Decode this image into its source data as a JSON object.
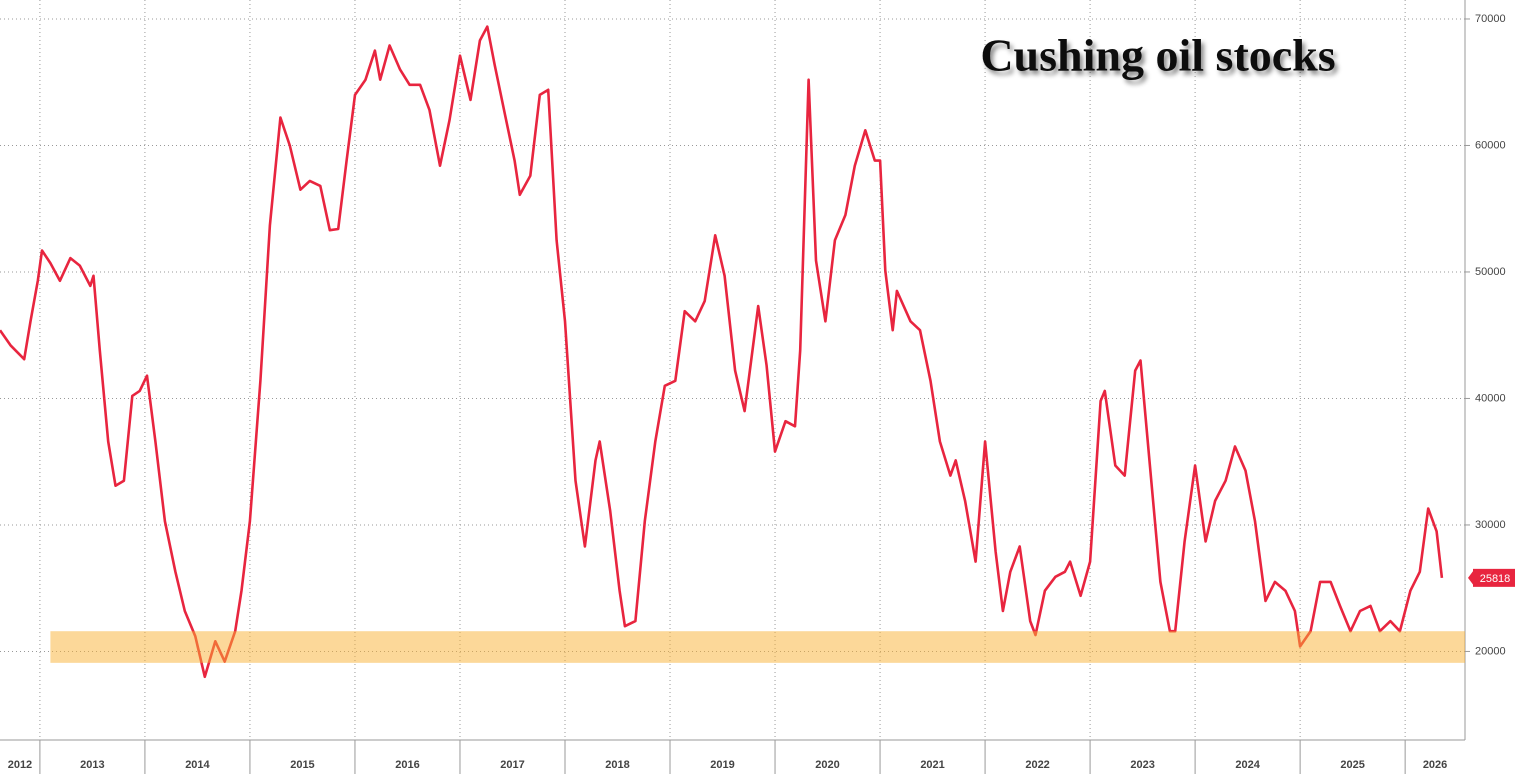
{
  "chart_data": {
    "type": "line",
    "title": "Cushing oil stocks",
    "x": [
      2012.62,
      2012.72,
      2012.85,
      2012.91,
      2012.98,
      2013.02,
      2013.1,
      2013.19,
      2013.29,
      2013.38,
      2013.48,
      2013.51,
      2013.57,
      2013.65,
      2013.72,
      2013.8,
      2013.88,
      2013.95,
      2014.02,
      2014.1,
      2014.19,
      2014.29,
      2014.38,
      2014.48,
      2014.57,
      2014.67,
      2014.76,
      2014.86,
      2014.92,
      2015.0,
      2015.1,
      2015.19,
      2015.29,
      2015.38,
      2015.48,
      2015.57,
      2015.67,
      2015.76,
      2015.84,
      2015.92,
      2016.0,
      2016.1,
      2016.19,
      2016.24,
      2016.33,
      2016.43,
      2016.52,
      2016.62,
      2016.71,
      2016.81,
      2016.9,
      2017.0,
      2017.1,
      2017.19,
      2017.26,
      2017.33,
      2017.43,
      2017.52,
      2017.57,
      2017.67,
      2017.76,
      2017.84,
      2017.92,
      2018.0,
      2018.1,
      2018.19,
      2018.29,
      2018.33,
      2018.43,
      2018.52,
      2018.57,
      2018.67,
      2018.76,
      2018.86,
      2018.95,
      2019.05,
      2019.14,
      2019.24,
      2019.33,
      2019.43,
      2019.52,
      2019.62,
      2019.71,
      2019.81,
      2019.84,
      2019.92,
      2020.0,
      2020.1,
      2020.19,
      2020.24,
      2020.32,
      2020.39,
      2020.48,
      2020.57,
      2020.67,
      2020.76,
      2020.86,
      2020.95,
      2021.0,
      2021.05,
      2021.12,
      2021.16,
      2021.29,
      2021.38,
      2021.48,
      2021.57,
      2021.67,
      2021.72,
      2021.81,
      2021.91,
      2022.0,
      2022.1,
      2022.17,
      2022.24,
      2022.33,
      2022.43,
      2022.48,
      2022.57,
      2022.67,
      2022.76,
      2022.81,
      2022.91,
      2023.0,
      2023.1,
      2023.14,
      2023.24,
      2023.33,
      2023.43,
      2023.48,
      2023.57,
      2023.67,
      2023.76,
      2023.81,
      2023.9,
      2024.0,
      2024.1,
      2024.19,
      2024.29,
      2024.38,
      2024.48,
      2024.57,
      2024.67,
      2024.76,
      2024.86,
      2024.95,
      2025.0,
      2025.1,
      2025.19,
      2025.29,
      2025.38,
      2025.48,
      2025.57,
      2025.67,
      2025.76,
      2025.86,
      2025.95,
      2026.05,
      2026.14,
      2026.22,
      2026.3,
      2026.35
    ],
    "values": [
      45400,
      44200,
      43100,
      46100,
      49300,
      51700,
      50700,
      49300,
      51100,
      50500,
      48900,
      49700,
      43800,
      36600,
      33100,
      33500,
      40200,
      40600,
      41800,
      36600,
      30300,
      26300,
      23200,
      21200,
      18000,
      20800,
      19200,
      21600,
      24800,
      30300,
      41400,
      53700,
      62200,
      60000,
      56500,
      57200,
      56800,
      53300,
      53400,
      58800,
      64000,
      65200,
      67500,
      65200,
      67900,
      66000,
      64800,
      64800,
      62800,
      58400,
      62000,
      67100,
      63600,
      68300,
      69400,
      66400,
      62400,
      58800,
      56100,
      57600,
      64000,
      64400,
      52500,
      46100,
      33500,
      28300,
      35100,
      36600,
      31100,
      24800,
      22000,
      22400,
      30300,
      36600,
      41000,
      41400,
      46900,
      46100,
      47700,
      52900,
      49700,
      42200,
      39000,
      45400,
      47300,
      42600,
      35800,
      38200,
      37800,
      43800,
      65200,
      50900,
      46100,
      52500,
      54500,
      58400,
      61200,
      58800,
      58800,
      50100,
      45400,
      48500,
      46100,
      45400,
      41400,
      36600,
      33900,
      35100,
      31900,
      27100,
      36600,
      27900,
      23200,
      26300,
      28300,
      22400,
      21300,
      24800,
      25900,
      26300,
      27100,
      24400,
      27100,
      39800,
      40600,
      34700,
      33900,
      42200,
      43000,
      34700,
      25500,
      21600,
      21600,
      28700,
      34700,
      28700,
      31900,
      33500,
      36200,
      34300,
      30300,
      24000,
      25500,
      24800,
      23200,
      20400,
      21600,
      25500,
      25500,
      23600,
      21600,
      23200,
      23600,
      21600,
      22400,
      21600,
      24800,
      26300,
      31300,
      29500,
      25818
    ],
    "color": "#e8253f",
    "xlim": [
      2012.62,
      2026.57
    ],
    "xticks": [
      2012,
      2013,
      2014,
      2015,
      2016,
      2017,
      2018,
      2019,
      2020,
      2021,
      2022,
      2023,
      2024,
      2025,
      2026
    ],
    "ylim": [
      13000,
      71500
    ],
    "yticks": [
      20000,
      30000,
      40000,
      50000,
      60000,
      70000
    ],
    "grid": true,
    "band": {
      "xlim": [
        2013.1,
        2026.57
      ],
      "ylim": [
        19100,
        21600
      ],
      "color": "#f9b233"
    }
  }
}
